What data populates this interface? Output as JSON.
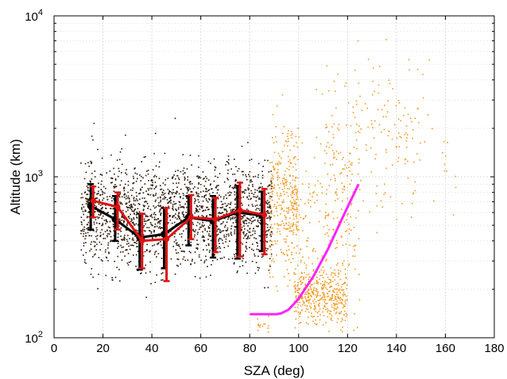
{
  "chart_data": {
    "type": "scatter",
    "xlabel": "SZA (deg)",
    "ylabel": "Altitude (km)",
    "xlim": [
      0,
      180
    ],
    "ylim": [
      100,
      10000
    ],
    "yscale": "log",
    "grid": true,
    "x_ticks": [
      "0",
      "20",
      "40",
      "60",
      "80",
      "100",
      "120",
      "140",
      "160",
      "180"
    ],
    "y_ticks": [
      {
        "base": "10",
        "exp": "2"
      },
      {
        "base": "10",
        "exp": "3"
      },
      {
        "base": "10",
        "exp": "4"
      }
    ],
    "colors": {
      "dayside_points": "#2a1606",
      "nightside_points": "#f39a1f",
      "black_series": "#000000",
      "red_series": "#dd1111",
      "magenta_curve": "#ff22ff"
    },
    "scatter_groups": [
      {
        "color_key": "dayside_points",
        "x_range": [
          11,
          89
        ],
        "y_median": 580,
        "y_log_spread": 0.16,
        "approx_count": 1900,
        "seed": 11
      },
      {
        "color_key": "nightside_points",
        "clusters": [
          {
            "x_range": [
              88,
              100
            ],
            "y_median": 720,
            "y_log_spread": 0.22,
            "approx_count": 300
          },
          {
            "x_range": [
              98,
              120
            ],
            "y_median": 185,
            "y_log_spread": 0.09,
            "approx_count": 420
          },
          {
            "x_range": [
              95,
              125
            ],
            "y_median": 500,
            "y_log_spread": 0.32,
            "approx_count": 250
          },
          {
            "x_range": [
              110,
              150
            ],
            "y_median": 1700,
            "y_log_spread": 0.22,
            "approx_count": 170
          },
          {
            "x_range": [
              140,
              165
            ],
            "y_median": 1400,
            "y_log_spread": 0.25,
            "approx_count": 25
          },
          {
            "x_range": [
              83,
              88
            ],
            "y_median": 118,
            "y_log_spread": 0.02,
            "approx_count": 14
          }
        ],
        "seed": 29
      }
    ],
    "series": [
      {
        "color_key": "black_series",
        "x": [
          15,
          25,
          35,
          45,
          55,
          65,
          75,
          85
        ],
        "y": [
          660,
          545,
          420,
          440,
          560,
          530,
          600,
          575
        ],
        "y_low": [
          470,
          400,
          265,
          270,
          375,
          315,
          310,
          345
        ],
        "y_high": [
          900,
          760,
          590,
          640,
          760,
          760,
          880,
          810
        ]
      },
      {
        "color_key": "red_series",
        "x": [
          16,
          26,
          36,
          46,
          56,
          66,
          76,
          86
        ],
        "y": [
          710,
          650,
          400,
          410,
          560,
          545,
          620,
          580
        ],
        "y_low": [
          560,
          470,
          270,
          225,
          410,
          340,
          320,
          330
        ],
        "y_high": [
          870,
          800,
          590,
          640,
          770,
          740,
          920,
          840
        ]
      }
    ],
    "curve": {
      "color_key": "magenta_curve",
      "x": [
        80,
        88,
        91,
        93,
        96,
        100,
        106,
        112,
        118,
        124.5
      ],
      "y": [
        140,
        140,
        140,
        142,
        150,
        175,
        240,
        355,
        560,
        900
      ]
    }
  }
}
